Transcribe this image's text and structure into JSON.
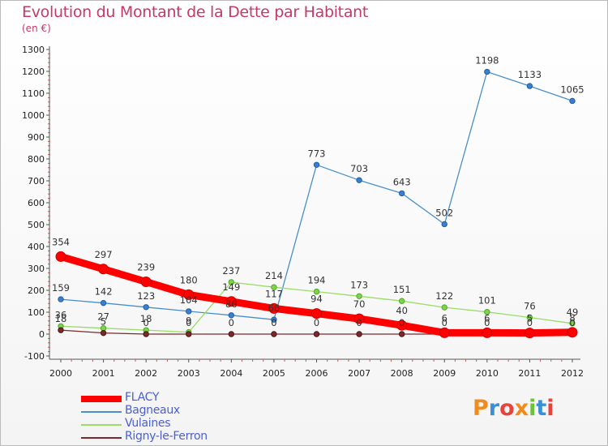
{
  "title": "Evolution du Montant de la Dette par Habitant",
  "subtitle": "(en €)",
  "brand": {
    "text": "Proxiti",
    "colors": [
      "#f08c1e",
      "#3a8fd6",
      "#e8423c",
      "#f08c1e",
      "#6cc23a",
      "#3a8fd6",
      "#e8423c"
    ]
  },
  "chart_data": {
    "type": "line",
    "title": "Evolution du Montant de la Dette par Habitant",
    "ylabel": "(en €)",
    "xlabel": "",
    "x": [
      "2000",
      "2001",
      "2002",
      "2003",
      "2004",
      "2005",
      "2006",
      "2007",
      "2008",
      "2009",
      "2010",
      "2011",
      "2012"
    ],
    "ylim": [
      -100,
      1300
    ],
    "yticks": [
      -100,
      0,
      100,
      200,
      300,
      400,
      500,
      600,
      700,
      800,
      900,
      1000,
      1100,
      1200,
      1300
    ],
    "grid": false,
    "legend_position": "bottom-left",
    "series": [
      {
        "name": "FLACY",
        "color": "#ff0000",
        "values": [
          354,
          297,
          239,
          180,
          149,
          117,
          94,
          70,
          40,
          6,
          6,
          5,
          8
        ],
        "labels": [
          "354",
          "297",
          "239",
          "180",
          "149",
          "117",
          "94",
          "70",
          "40",
          "6",
          "6",
          "5",
          "8"
        ]
      },
      {
        "name": "Bagneaux",
        "color": "#4a8fc9",
        "values": [
          159,
          142,
          123,
          104,
          86,
          66,
          773,
          703,
          643,
          502,
          1198,
          1133,
          1065
        ],
        "labels": [
          "159",
          "142",
          "123",
          "104",
          "86",
          "66",
          "773",
          "703",
          "643",
          "502",
          "1198",
          "1133",
          "1065"
        ]
      },
      {
        "name": "Vulaines",
        "color": "#99dd66",
        "values": [
          36,
          27,
          18,
          9,
          237,
          214,
          194,
          173,
          151,
          122,
          101,
          76,
          49
        ],
        "labels": [
          "36",
          "27",
          "18",
          "9",
          "237",
          "214",
          "194",
          "173",
          "151",
          "122",
          "101",
          "76",
          "49"
        ]
      },
      {
        "name": "Rigny-le-Ferron",
        "color": "#7a2a2a",
        "values": [
          18,
          5,
          0,
          0,
          0,
          0,
          0,
          0,
          0,
          0,
          0,
          0,
          0
        ],
        "labels": [
          "18",
          "5",
          "0",
          "0",
          "0",
          "0",
          "0",
          "0",
          "0",
          "0",
          "0",
          "0",
          "0"
        ]
      }
    ]
  }
}
